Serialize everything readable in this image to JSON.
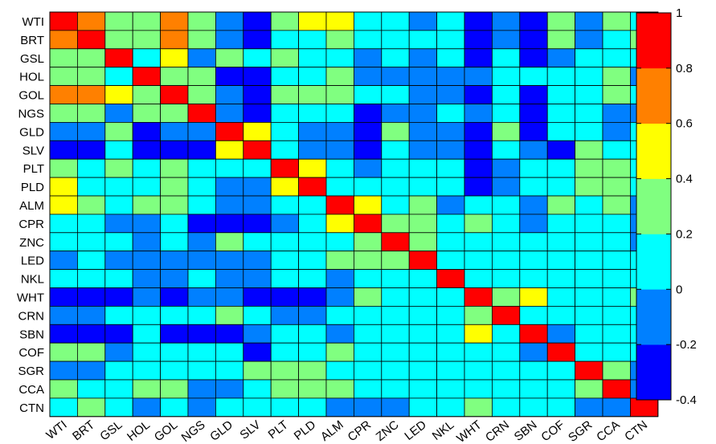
{
  "chart_data": {
    "type": "heatmap",
    "title": "",
    "labels": [
      "WTI",
      "BRT",
      "GSL",
      "HOL",
      "GOL",
      "NGS",
      "GLD",
      "SLV",
      "PLT",
      "PLD",
      "ALM",
      "CPR",
      "ZNC",
      "LED",
      "NKL",
      "WHT",
      "CRN",
      "SBN",
      "COF",
      "SGR",
      "CCA",
      "CTN"
    ],
    "colorbar": {
      "min": -0.4,
      "max": 1,
      "ticks": [
        "1",
        "0.8",
        "0.6",
        "0.4",
        "0.2",
        "0",
        "-0.2",
        "-0.4"
      ],
      "tick_values": [
        1,
        0.8,
        0.6,
        0.4,
        0.2,
        0,
        -0.2,
        -0.4
      ],
      "bin_colors": [
        "#0000FF",
        "#0080FF",
        "#00FFFF",
        "#80FF80",
        "#FFFF00",
        "#FF8000",
        "#FF0000"
      ]
    },
    "matrix": [
      [
        6,
        5,
        3,
        3,
        5,
        3,
        1,
        0,
        3,
        4,
        4,
        2,
        2,
        1,
        2,
        0,
        1,
        0,
        3,
        1,
        3,
        2
      ],
      [
        5,
        6,
        3,
        3,
        5,
        3,
        1,
        0,
        2,
        2,
        3,
        2,
        2,
        2,
        2,
        0,
        1,
        0,
        3,
        1,
        2,
        3
      ],
      [
        3,
        3,
        6,
        2,
        4,
        1,
        3,
        2,
        3,
        2,
        2,
        1,
        2,
        1,
        2,
        0,
        2,
        0,
        1,
        2,
        2,
        2
      ],
      [
        3,
        3,
        2,
        6,
        3,
        3,
        0,
        0,
        2,
        2,
        3,
        1,
        1,
        1,
        1,
        1,
        2,
        2,
        2,
        2,
        3,
        1
      ],
      [
        5,
        5,
        4,
        3,
        6,
        3,
        1,
        0,
        3,
        3,
        3,
        2,
        2,
        1,
        1,
        0,
        2,
        0,
        2,
        2,
        3,
        2
      ],
      [
        3,
        3,
        1,
        3,
        3,
        6,
        1,
        0,
        2,
        2,
        2,
        0,
        1,
        1,
        2,
        1,
        2,
        0,
        2,
        2,
        1,
        1
      ],
      [
        1,
        1,
        3,
        0,
        1,
        1,
        6,
        4,
        2,
        1,
        1,
        0,
        3,
        1,
        1,
        0,
        3,
        0,
        2,
        2,
        1,
        2
      ],
      [
        0,
        0,
        2,
        0,
        0,
        0,
        4,
        6,
        2,
        1,
        1,
        0,
        2,
        1,
        1,
        0,
        2,
        1,
        0,
        3,
        2,
        2
      ],
      [
        3,
        2,
        3,
        2,
        3,
        2,
        2,
        2,
        6,
        4,
        2,
        1,
        2,
        2,
        2,
        0,
        1,
        2,
        2,
        3,
        3,
        2
      ],
      [
        4,
        2,
        2,
        2,
        3,
        2,
        1,
        1,
        4,
        6,
        2,
        2,
        2,
        2,
        2,
        0,
        1,
        2,
        2,
        3,
        3,
        2
      ],
      [
        4,
        3,
        2,
        3,
        3,
        2,
        1,
        1,
        2,
        2,
        6,
        4,
        2,
        3,
        1,
        2,
        2,
        1,
        3,
        2,
        3,
        1
      ],
      [
        2,
        2,
        1,
        1,
        2,
        0,
        0,
        0,
        1,
        2,
        4,
        6,
        3,
        3,
        2,
        3,
        2,
        1,
        2,
        2,
        2,
        1
      ],
      [
        2,
        2,
        2,
        1,
        2,
        1,
        3,
        2,
        2,
        2,
        2,
        3,
        6,
        3,
        2,
        2,
        2,
        2,
        2,
        2,
        2,
        1
      ],
      [
        1,
        2,
        1,
        1,
        1,
        1,
        1,
        1,
        2,
        2,
        3,
        3,
        3,
        6,
        2,
        2,
        2,
        2,
        2,
        2,
        2,
        2
      ],
      [
        2,
        2,
        2,
        1,
        1,
        2,
        1,
        1,
        2,
        2,
        1,
        2,
        2,
        2,
        6,
        2,
        2,
        2,
        2,
        2,
        2,
        2
      ],
      [
        0,
        0,
        0,
        1,
        0,
        1,
        1,
        0,
        0,
        0,
        1,
        3,
        2,
        2,
        2,
        6,
        3,
        4,
        2,
        2,
        2,
        3
      ],
      [
        1,
        1,
        2,
        2,
        2,
        2,
        3,
        2,
        1,
        1,
        2,
        2,
        2,
        2,
        2,
        3,
        6,
        2,
        2,
        2,
        2,
        2
      ],
      [
        0,
        0,
        0,
        2,
        0,
        0,
        0,
        1,
        2,
        2,
        1,
        2,
        2,
        2,
        2,
        4,
        2,
        6,
        1,
        2,
        2,
        2
      ],
      [
        3,
        3,
        1,
        2,
        2,
        2,
        2,
        0,
        2,
        2,
        3,
        2,
        2,
        2,
        2,
        2,
        2,
        1,
        6,
        2,
        2,
        2
      ],
      [
        1,
        1,
        2,
        2,
        2,
        2,
        2,
        3,
        3,
        3,
        2,
        2,
        2,
        2,
        2,
        2,
        2,
        2,
        2,
        6,
        3,
        1
      ],
      [
        3,
        2,
        2,
        3,
        3,
        1,
        1,
        2,
        3,
        3,
        3,
        2,
        2,
        2,
        2,
        2,
        2,
        2,
        2,
        3,
        6,
        1
      ],
      [
        2,
        3,
        2,
        1,
        2,
        1,
        2,
        2,
        2,
        2,
        1,
        1,
        1,
        2,
        2,
        3,
        2,
        2,
        2,
        1,
        1,
        6
      ]
    ]
  }
}
